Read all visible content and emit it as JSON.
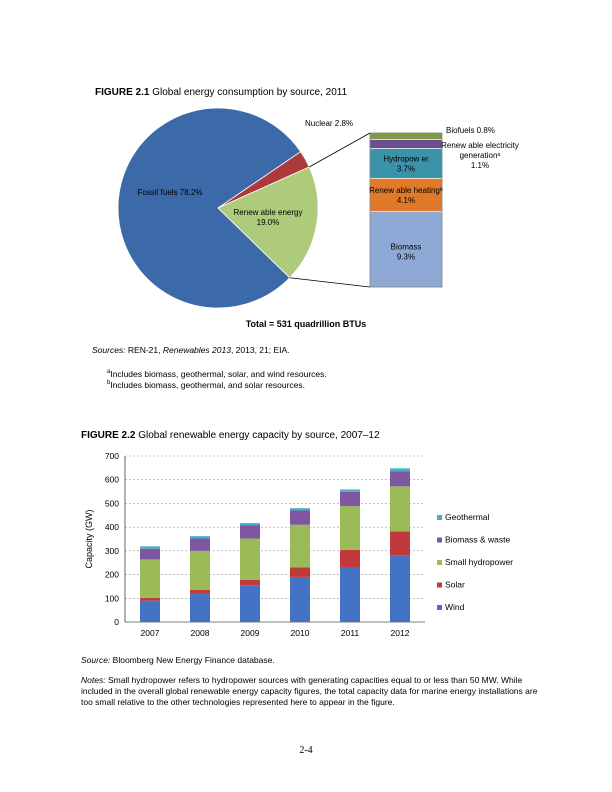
{
  "fig1": {
    "title_bold": "FIGURE 2.1",
    "title_rest": " Global energy consumption by source, 2011",
    "total": "Total = 531 quadrillion BTUs",
    "sources_label": "Sources:",
    "sources_text": " REN-21, ",
    "sources_italic": "Renewables 2013",
    "sources_text2": ", 2013, 21; EIA.",
    "footnote_a": "Includes biomass, geothermal, solar, and wind resources.",
    "footnote_b": "Includes biomass, geothermal, and solar resources.",
    "footnote_a_mark": "a",
    "footnote_b_mark": "b"
  },
  "fig2": {
    "title_bold": "FIGURE 2.2",
    "title_rest": " Global renewable energy capacity by source, 2007–12",
    "source_label": "Source:",
    "source_text": " Bloomberg New Energy Finance database.",
    "notes_label": "Notes:",
    "notes_text": " Small hydropower refers to hydropower sources with generating capacities equal to or less than 50 MW. While included in the overall global renewable energy capacity figures, the total capacity data for marine energy installations are too small relative to the other technologies represented here to appear in the figure."
  },
  "page_number": "2-4",
  "chart_data": [
    {
      "type": "pie",
      "slices": [
        {
          "label": "Fossil fuels 78.2%",
          "value": 78.2,
          "color": "#3c6aa8"
        },
        {
          "label": "Nuclear 2.8%",
          "value": 2.8,
          "color": "#ad3a3a"
        },
        {
          "label": "Renew able energy\n19.0%",
          "value": 19.0,
          "color": "#aecb7c"
        }
      ],
      "breakdown": [
        {
          "label": "Biomass\n9.3%",
          "value": 9.3,
          "color": "#8ea9d5"
        },
        {
          "label": "Renew able heatingᵇ\n4.1%",
          "value": 4.1,
          "color": "#e0792a"
        },
        {
          "label": "Hydropow er\n3.7%",
          "value": 3.7,
          "color": "#3a93a8"
        },
        {
          "label": "Renew able electricity\ngenerationᵃ\n1.1%",
          "value": 1.1,
          "color": "#6d4d8e"
        },
        {
          "label": "Biofuels 0.8%",
          "value": 0.8,
          "color": "#7f9a45"
        }
      ]
    },
    {
      "type": "bar",
      "stacked": true,
      "categories": [
        "2007",
        "2008",
        "2009",
        "2010",
        "2011",
        "2012"
      ],
      "ylabel": "Capacity (GW)",
      "ylim": [
        0,
        700
      ],
      "yticks": [
        0,
        100,
        200,
        300,
        400,
        500,
        600,
        700
      ],
      "grid": true,
      "legend": "right",
      "series": [
        {
          "name": "Wind",
          "color": "#4472c4",
          "values": [
            90,
            120,
            155,
            190,
            232,
            282
          ]
        },
        {
          "name": "Solar",
          "color": "#c0393b",
          "values": [
            12,
            15,
            22,
            40,
            72,
            100
          ]
        },
        {
          "name": "Small hydropower",
          "color": "#9bbb59",
          "values": [
            162,
            165,
            175,
            180,
            185,
            190
          ]
        },
        {
          "name": "Biomass & waste",
          "color": "#7e57a0",
          "values": [
            45,
            52,
            55,
            60,
            60,
            64
          ]
        },
        {
          "name": "Geothermal",
          "color": "#4bacc6",
          "values": [
            10,
            10,
            10,
            10,
            10,
            12
          ]
        }
      ]
    }
  ]
}
